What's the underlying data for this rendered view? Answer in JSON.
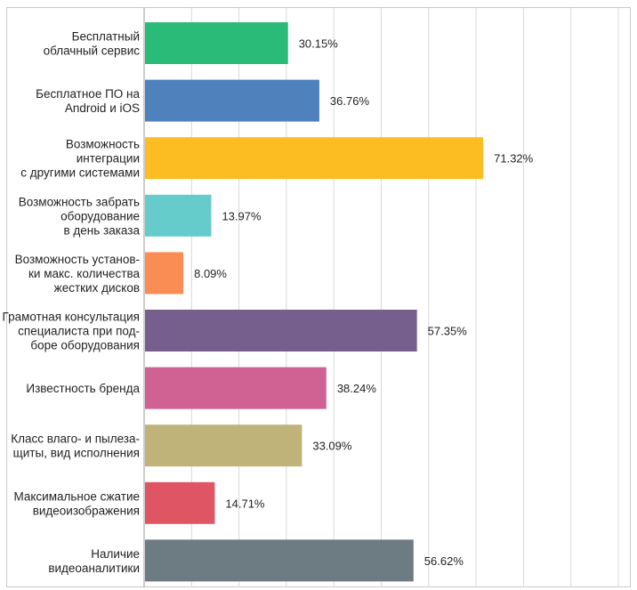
{
  "chart_data": {
    "type": "bar",
    "orientation": "horizontal",
    "categories": [
      [
        "Бесплатный",
        "облачный сервис"
      ],
      [
        "Бесплатное ПО на",
        "Android и iOS"
      ],
      [
        "Возможность",
        "интеграции",
        "с другими системами"
      ],
      [
        "Возможность забрать",
        "оборудование",
        "в день заказа"
      ],
      [
        "Возможность установ-",
        "ки макс. количества",
        "жестких дисков"
      ],
      [
        "Грамотная консультация",
        "специалиста при под-",
        "боре оборудования"
      ],
      [
        "Известность бренда"
      ],
      [
        "Класс влаго- и пылеза-",
        "щиты, вид исполнения"
      ],
      [
        "Максимальное сжатие",
        "видеоизображения"
      ],
      [
        "Наличие",
        "видеоаналитики"
      ]
    ],
    "values": [
      30.15,
      36.76,
      71.32,
      13.97,
      8.09,
      57.35,
      38.24,
      33.09,
      14.71,
      56.62
    ],
    "value_labels": [
      "30.15%",
      "36.76%",
      "71.32%",
      "13.97%",
      "8.09%",
      "57.35%",
      "38.24%",
      "33.09%",
      "14.71%",
      "56.62%"
    ],
    "colors": [
      "#2bbb78",
      "#4f81bd",
      "#fbbd22",
      "#66cbcb",
      "#f98d53",
      "#765f8d",
      "#d06293",
      "#bfb37a",
      "#e05563",
      "#6d7c82"
    ],
    "xlim": [
      0,
      100
    ],
    "grid": true
  }
}
